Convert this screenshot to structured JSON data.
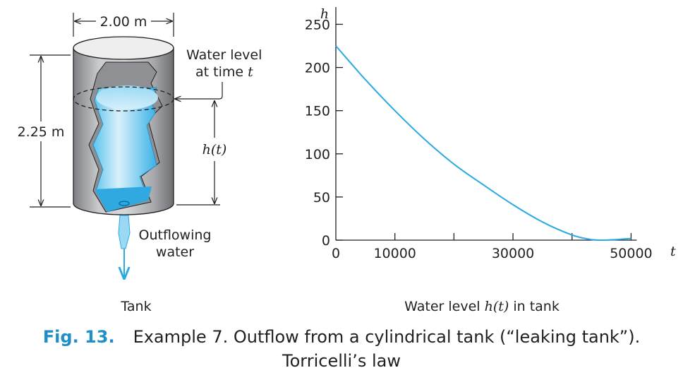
{
  "tank": {
    "width_label": "2.00 m",
    "height_label": "2.25 m",
    "water_level_line1": "Water level",
    "water_level_line2": "at time",
    "water_level_var": "t",
    "level_label": "h(t)",
    "outflow_line1": "Outflowing",
    "outflow_line2": "water",
    "sub_label": "Tank"
  },
  "chart_data": {
    "type": "line",
    "title": "",
    "xlabel": "t",
    "ylabel": "h",
    "xlim": [
      0,
      57000
    ],
    "ylim": [
      0,
      270
    ],
    "x_ticks": [
      0,
      10000,
      20000,
      30000,
      40000,
      50000
    ],
    "x_tick_labels": [
      "0",
      "10000",
      "",
      "30000",
      "",
      "50000"
    ],
    "y_ticks": [
      0,
      50,
      100,
      150,
      200,
      250
    ],
    "y_tick_labels": [
      "0",
      "50",
      "100",
      "150",
      "200",
      "250"
    ],
    "grid": false,
    "series": [
      {
        "color": "#29abe2",
        "x": [
          0,
          5000,
          10000,
          15000,
          20000,
          25000,
          30000,
          35000,
          40000,
          43000,
          45000,
          47000,
          50000
        ],
        "y": [
          225,
          186,
          150,
          117,
          88,
          64,
          41,
          21,
          6,
          1,
          0,
          0.5,
          2
        ]
      }
    ],
    "sub_label": "Water level",
    "sub_label_var": "h(t)",
    "sub_label_tail": "in tank"
  },
  "caption": {
    "fig_number": "Fig. 13.",
    "line1": "Example 7. Outflow from a cylindrical tank (“leaking tank”).",
    "line2": "Torricelli’s law"
  }
}
